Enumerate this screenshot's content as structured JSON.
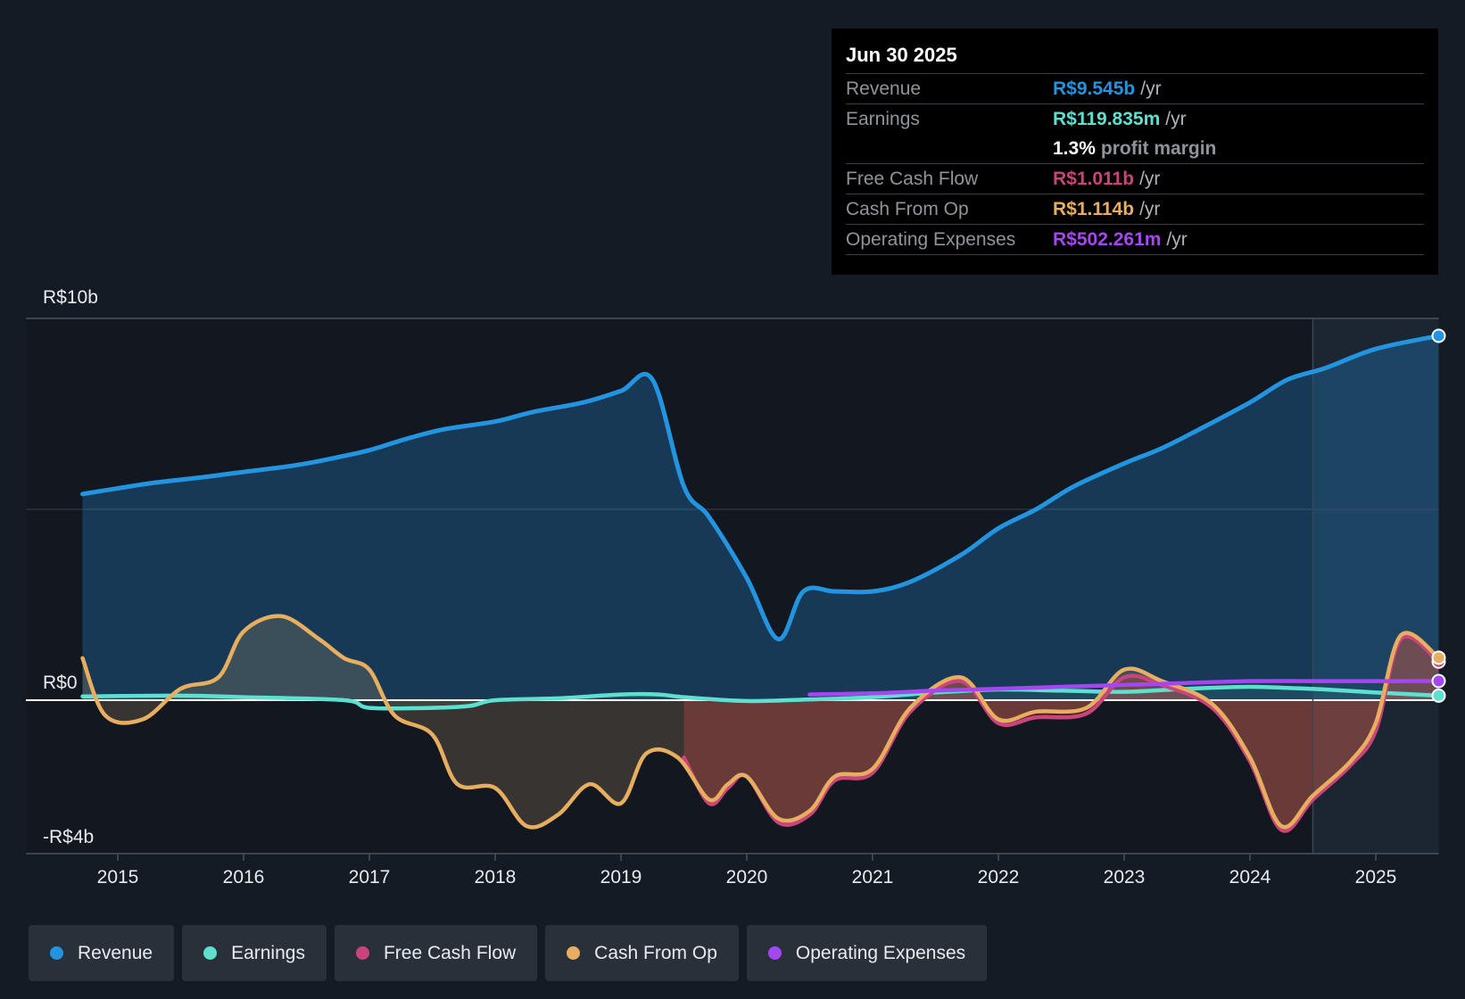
{
  "tooltip": {
    "date": "Jun 30 2025",
    "revenue": {
      "label": "Revenue",
      "value": "R$9.545b",
      "unit": "/yr"
    },
    "earnings": {
      "label": "Earnings",
      "value": "R$119.835m",
      "unit": "/yr"
    },
    "margin": {
      "value": "1.3%",
      "label": "profit margin"
    },
    "fcf": {
      "label": "Free Cash Flow",
      "value": "R$1.011b",
      "unit": "/yr"
    },
    "cfo": {
      "label": "Cash From Op",
      "value": "R$1.114b",
      "unit": "/yr"
    },
    "opex": {
      "label": "Operating Expenses",
      "value": "R$502.261m",
      "unit": "/yr"
    }
  },
  "legend": [
    {
      "label": "Revenue",
      "color": "#2394df"
    },
    {
      "label": "Earnings",
      "color": "#5de0d0"
    },
    {
      "label": "Free Cash Flow",
      "color": "#c9447a"
    },
    {
      "label": "Cash From Op",
      "color": "#e8ae60"
    },
    {
      "label": "Operating Expenses",
      "color": "#a547f0"
    }
  ],
  "chart_data": {
    "type": "line",
    "y_axis_labels": [
      "R$10b",
      "R$0",
      "-R$4b"
    ],
    "ylim": [
      -4,
      10
    ],
    "xlim": [
      2014.27,
      2025.5
    ],
    "x_ticks": [
      "2015",
      "2016",
      "2017",
      "2018",
      "2019",
      "2020",
      "2021",
      "2022",
      "2023",
      "2024",
      "2025"
    ],
    "series": [
      {
        "name": "Revenue",
        "color": "#2394df",
        "points": [
          [
            2014.72,
            5.4
          ],
          [
            2015.0,
            5.55
          ],
          [
            2015.3,
            5.7
          ],
          [
            2015.7,
            5.85
          ],
          [
            2016.0,
            5.98
          ],
          [
            2016.3,
            6.1
          ],
          [
            2016.5,
            6.2
          ],
          [
            2016.8,
            6.4
          ],
          [
            2017.0,
            6.55
          ],
          [
            2017.3,
            6.85
          ],
          [
            2017.6,
            7.1
          ],
          [
            2018.0,
            7.3
          ],
          [
            2018.3,
            7.55
          ],
          [
            2018.7,
            7.8
          ],
          [
            2019.0,
            8.1
          ],
          [
            2019.25,
            8.4
          ],
          [
            2019.5,
            5.6
          ],
          [
            2019.7,
            4.8
          ],
          [
            2020.0,
            3.2
          ],
          [
            2020.25,
            1.6
          ],
          [
            2020.45,
            2.85
          ],
          [
            2020.7,
            2.85
          ],
          [
            2021.0,
            2.85
          ],
          [
            2021.3,
            3.1
          ],
          [
            2021.7,
            3.8
          ],
          [
            2022.0,
            4.5
          ],
          [
            2022.3,
            5.0
          ],
          [
            2022.6,
            5.6
          ],
          [
            2023.0,
            6.2
          ],
          [
            2023.3,
            6.6
          ],
          [
            2023.6,
            7.1
          ],
          [
            2024.0,
            7.8
          ],
          [
            2024.3,
            8.4
          ],
          [
            2024.6,
            8.7
          ],
          [
            2025.0,
            9.2
          ],
          [
            2025.5,
            9.545
          ]
        ]
      },
      {
        "name": "Earnings",
        "color": "#5de0d0",
        "points": [
          [
            2014.72,
            0.1
          ],
          [
            2015.5,
            0.12
          ],
          [
            2016.0,
            0.08
          ],
          [
            2016.8,
            0.0
          ],
          [
            2017.0,
            -0.2
          ],
          [
            2017.5,
            -0.2
          ],
          [
            2017.8,
            -0.15
          ],
          [
            2018.0,
            0.0
          ],
          [
            2018.5,
            0.05
          ],
          [
            2019.0,
            0.15
          ],
          [
            2019.3,
            0.15
          ],
          [
            2019.5,
            0.08
          ],
          [
            2020.0,
            -0.02
          ],
          [
            2020.5,
            0.02
          ],
          [
            2021.0,
            0.08
          ],
          [
            2021.5,
            0.2
          ],
          [
            2022.0,
            0.28
          ],
          [
            2022.5,
            0.25
          ],
          [
            2023.0,
            0.22
          ],
          [
            2023.5,
            0.3
          ],
          [
            2024.0,
            0.35
          ],
          [
            2024.3,
            0.32
          ],
          [
            2024.6,
            0.28
          ],
          [
            2025.0,
            0.2
          ],
          [
            2025.5,
            0.12
          ]
        ]
      },
      {
        "name": "Free Cash Flow",
        "color": "#c9447a",
        "points": [
          [
            2019.5,
            -1.5
          ],
          [
            2019.7,
            -2.7
          ],
          [
            2019.85,
            -2.3
          ],
          [
            2020.0,
            -2.0
          ],
          [
            2020.25,
            -3.2
          ],
          [
            2020.5,
            -3.0
          ],
          [
            2020.7,
            -2.1
          ],
          [
            2021.0,
            -1.9
          ],
          [
            2021.3,
            -0.3
          ],
          [
            2021.7,
            0.5
          ],
          [
            2022.0,
            -0.6
          ],
          [
            2022.3,
            -0.45
          ],
          [
            2022.7,
            -0.35
          ],
          [
            2023.0,
            0.6
          ],
          [
            2023.3,
            0.4
          ],
          [
            2023.7,
            -0.2
          ],
          [
            2024.0,
            -1.6
          ],
          [
            2024.25,
            -3.4
          ],
          [
            2024.5,
            -2.6
          ],
          [
            2024.8,
            -1.7
          ],
          [
            2025.0,
            -0.8
          ],
          [
            2025.2,
            1.6
          ],
          [
            2025.5,
            1.01
          ]
        ]
      },
      {
        "name": "Cash From Op",
        "color": "#e8ae60",
        "points": [
          [
            2014.72,
            1.1
          ],
          [
            2014.9,
            -0.4
          ],
          [
            2015.2,
            -0.5
          ],
          [
            2015.5,
            0.3
          ],
          [
            2015.8,
            0.6
          ],
          [
            2016.0,
            1.8
          ],
          [
            2016.3,
            2.2
          ],
          [
            2016.6,
            1.6
          ],
          [
            2016.8,
            1.1
          ],
          [
            2017.0,
            0.8
          ],
          [
            2017.2,
            -0.4
          ],
          [
            2017.5,
            -0.9
          ],
          [
            2017.7,
            -2.2
          ],
          [
            2018.0,
            -2.3
          ],
          [
            2018.25,
            -3.3
          ],
          [
            2018.5,
            -3.0
          ],
          [
            2018.75,
            -2.2
          ],
          [
            2019.0,
            -2.7
          ],
          [
            2019.2,
            -1.4
          ],
          [
            2019.45,
            -1.5
          ],
          [
            2019.7,
            -2.6
          ],
          [
            2019.85,
            -2.2
          ],
          [
            2020.0,
            -2.0
          ],
          [
            2020.25,
            -3.1
          ],
          [
            2020.5,
            -2.9
          ],
          [
            2020.7,
            -2.0
          ],
          [
            2021.0,
            -1.8
          ],
          [
            2021.3,
            -0.2
          ],
          [
            2021.7,
            0.6
          ],
          [
            2022.0,
            -0.5
          ],
          [
            2022.3,
            -0.3
          ],
          [
            2022.7,
            -0.2
          ],
          [
            2023.0,
            0.8
          ],
          [
            2023.3,
            0.5
          ],
          [
            2023.7,
            -0.1
          ],
          [
            2024.0,
            -1.5
          ],
          [
            2024.25,
            -3.3
          ],
          [
            2024.5,
            -2.5
          ],
          [
            2024.8,
            -1.6
          ],
          [
            2025.0,
            -0.6
          ],
          [
            2025.2,
            1.7
          ],
          [
            2025.5,
            1.114
          ]
        ]
      },
      {
        "name": "Operating Expenses",
        "color": "#a547f0",
        "points": [
          [
            2020.5,
            0.15
          ],
          [
            2021.0,
            0.18
          ],
          [
            2021.5,
            0.25
          ],
          [
            2022.0,
            0.3
          ],
          [
            2022.5,
            0.35
          ],
          [
            2023.0,
            0.4
          ],
          [
            2023.5,
            0.45
          ],
          [
            2024.0,
            0.5
          ],
          [
            2024.5,
            0.5
          ],
          [
            2025.0,
            0.5
          ],
          [
            2025.5,
            0.502
          ]
        ]
      }
    ]
  }
}
